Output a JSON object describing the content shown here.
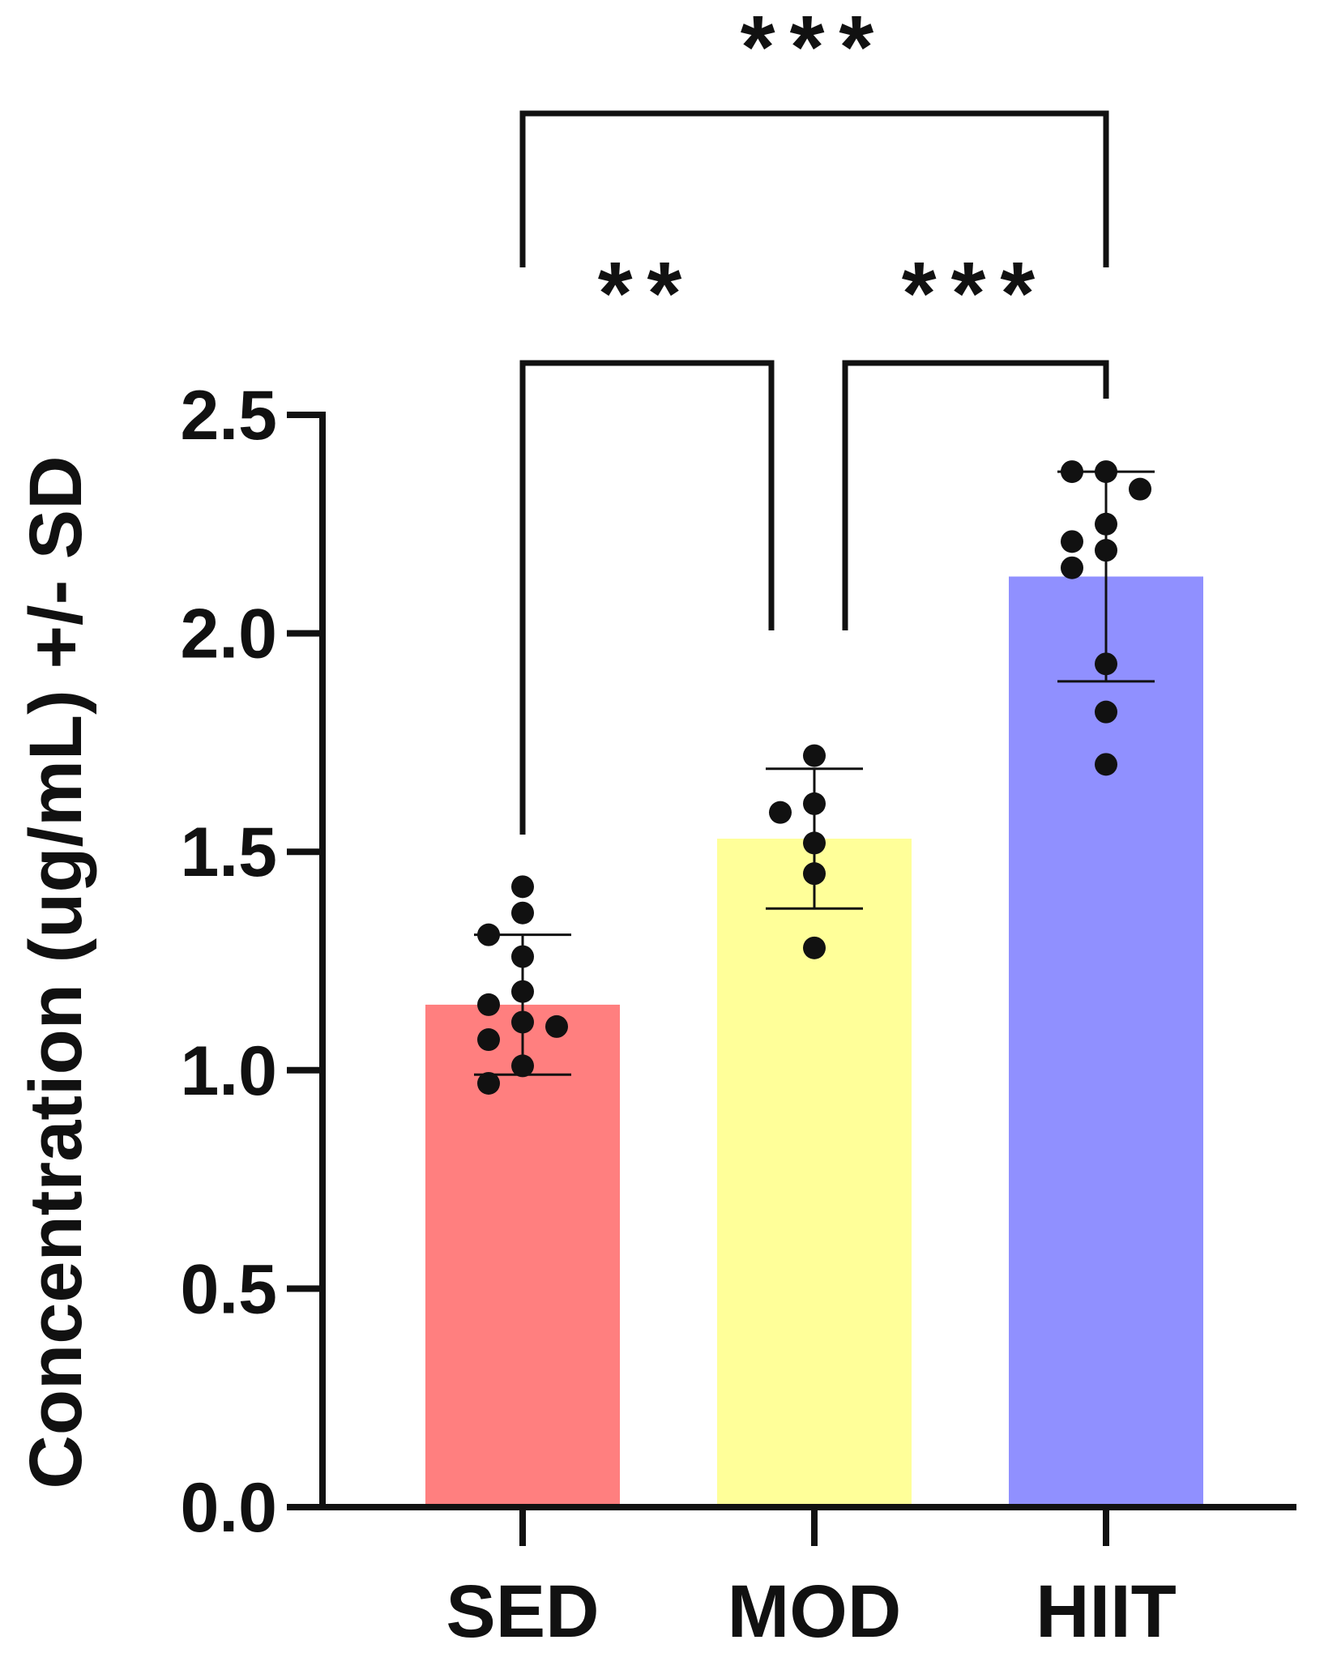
{
  "chart_data": {
    "type": "bar",
    "title": "",
    "xlabel": "",
    "ylabel": "Concentration (ug/mL) +/- SD",
    "ylim": [
      0,
      2.5
    ],
    "yticks": [
      "0.0",
      "0.5",
      "1.0",
      "1.5",
      "2.0",
      "2.5"
    ],
    "ytick_values": [
      0,
      0.5,
      1.0,
      1.5,
      2.0,
      2.5
    ],
    "grid": false,
    "categories": [
      "SED",
      "MOD",
      "HIIT"
    ],
    "values": [
      1.15,
      1.53,
      2.13
    ],
    "sd": [
      0.16,
      0.16,
      0.24
    ],
    "colors": [
      "#FF7F7F",
      "#FFFF99",
      "#9090FF"
    ],
    "points": [
      [
        1.42,
        1.36,
        1.31,
        1.26,
        1.18,
        1.15,
        1.11,
        1.1,
        1.07,
        1.01,
        0.97
      ],
      [
        1.72,
        1.61,
        1.59,
        1.52,
        1.45,
        1.28
      ],
      [
        2.37,
        2.37,
        2.33,
        2.25,
        2.21,
        2.19,
        2.15,
        1.93,
        1.82,
        1.7
      ]
    ],
    "significance": [
      {
        "from": "SED",
        "to": "MOD",
        "label": "**"
      },
      {
        "from": "MOD",
        "to": "HIIT",
        "label": "***"
      },
      {
        "from": "SED",
        "to": "HIIT",
        "label": "***"
      }
    ]
  }
}
